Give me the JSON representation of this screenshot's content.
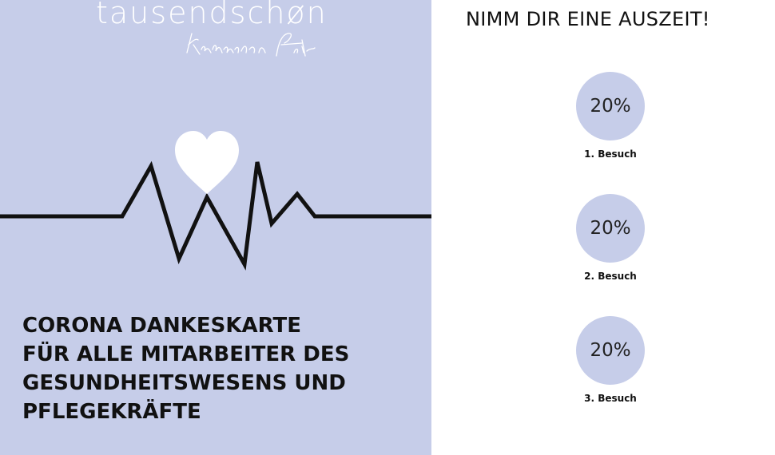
{
  "brand": {
    "name": "tausendschøn",
    "signature": "Katharina Fritz"
  },
  "headline": {
    "lines": [
      "CORONA DANKESKARTE",
      "FÜR ALLE MITARBEITER DES",
      "GESUNDHEITSWESENS UND",
      "PFLEGEKRÄFTE"
    ]
  },
  "offer": {
    "title": "NIMM DIR EINE AUSZEIT!",
    "coupons": [
      {
        "value": "20%",
        "label": "1. Besuch"
      },
      {
        "value": "20%",
        "label": "2. Besuch"
      },
      {
        "value": "20%",
        "label": "3. Besuch"
      }
    ]
  },
  "colors": {
    "panel_background": "#c6cde9",
    "line": "#111111",
    "heart": "#ffffff"
  },
  "icons": {
    "heart": "heart-icon",
    "heartbeat": "heartbeat-line"
  }
}
